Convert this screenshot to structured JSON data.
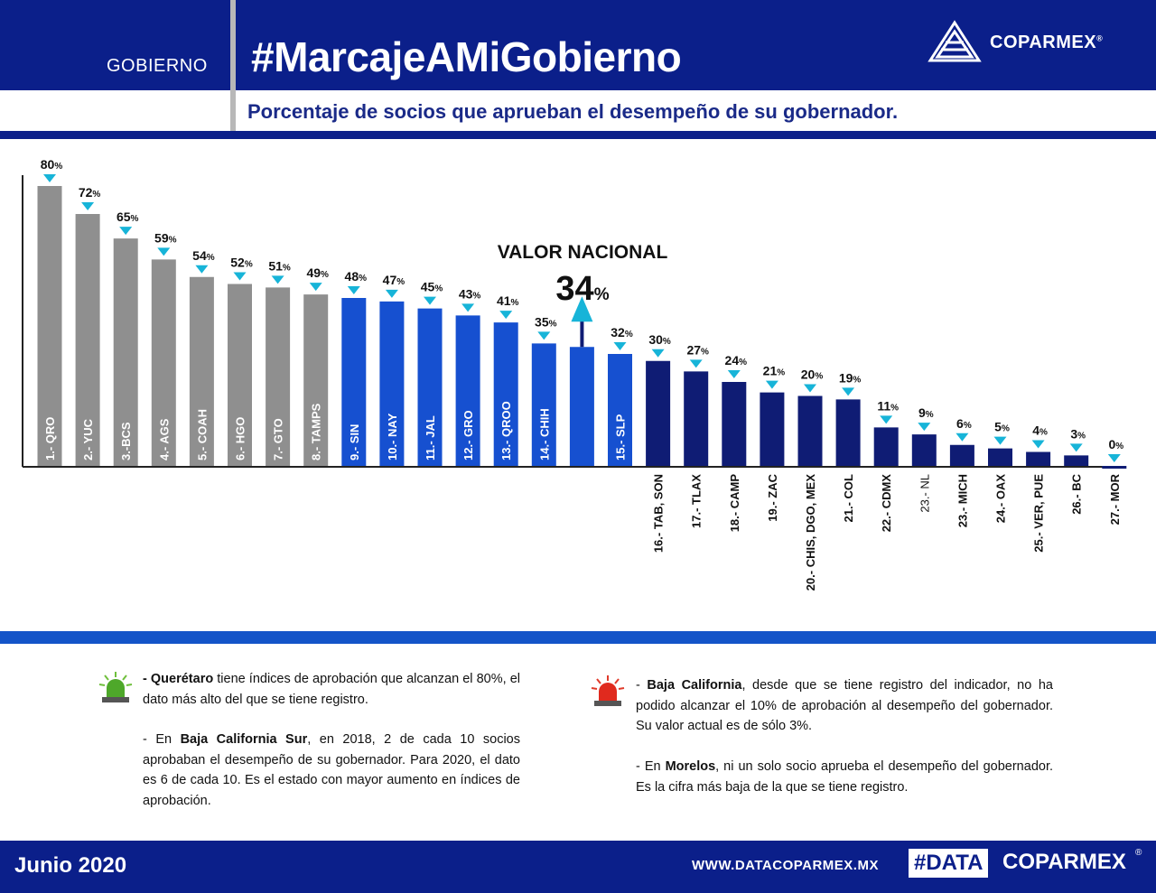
{
  "header": {
    "section": "GOBIERNO",
    "title": "#MarcajeAMiGobierno",
    "brand": "COPARMEX",
    "brand_mark": "®"
  },
  "subtitle": "Porcentaje de socios que aprueban el desempeño de su gobernador.",
  "national": {
    "label": "VALOR NACIONAL",
    "value": 34,
    "value_text": "34",
    "pct": "%"
  },
  "colors": {
    "grey": "#8f8f8f",
    "blue": "#1650d0",
    "navy": "#0f1c74",
    "arrow": "#17b4d8",
    "header": "#0b1f8a"
  },
  "chart_data": {
    "type": "bar",
    "title": "Porcentaje de socios que aprueban el desempeño de su gobernador.",
    "ylim": [
      0,
      80
    ],
    "grid": false,
    "categories": [
      "1.- QRO",
      "2.- YUC",
      "3.-BCS",
      "4.- AGS",
      "5.- COAH",
      "6.- HGO",
      "7.- GTO",
      "8.- TAMPS",
      "9.- SIN",
      "10.- NAY",
      "11.- JAL",
      "12.- GRO",
      "13.- QROO",
      "14.- CHIH",
      "",
      "15.- SLP",
      "16.- TAB, SON",
      "17.- TLAX",
      "18.- CAMP",
      "19.- ZAC",
      "20.- CHIS, DGO, MEX",
      "21.- COL",
      "22.- CDMX",
      "23.- NL",
      "23.- MICH",
      "24.- OAX",
      "25.- VER, PUE",
      "26.- BC",
      "27.- MOR"
    ],
    "values": [
      80,
      72,
      65,
      59,
      54,
      52,
      51,
      49,
      48,
      47,
      45,
      43,
      41,
      35,
      null,
      32,
      30,
      27,
      24,
      21,
      20,
      19,
      11,
      9,
      6,
      5,
      4,
      3,
      0
    ],
    "value_labels": [
      "80",
      "72",
      "65",
      "59",
      "54",
      "52",
      "51",
      "49",
      "48",
      "47",
      "45",
      "43",
      "41",
      "35",
      "",
      "32",
      "30",
      "27",
      "24",
      "21",
      "20",
      "19",
      "11",
      "9",
      "6",
      "5",
      "4",
      "3",
      "0"
    ],
    "reference_bar": {
      "index": 14,
      "value": 34,
      "label": "VALOR NACIONAL"
    },
    "groups": [
      "grey",
      "grey",
      "grey",
      "grey",
      "grey",
      "grey",
      "grey",
      "grey",
      "blue",
      "blue",
      "blue",
      "blue",
      "blue",
      "blue",
      "blue",
      "blue",
      "navy",
      "navy",
      "navy",
      "navy",
      "navy",
      "navy",
      "navy",
      "navy",
      "navy",
      "navy",
      "navy",
      "navy",
      "navy"
    ],
    "unit": "%"
  },
  "notes_left": [
    {
      "bold": "- Querétaro",
      "text": " tiene índices de aprobación que alcanzan el 80%, el dato más alto del que se tiene registro."
    },
    {
      "pre": "- En ",
      "bold": "Baja California Sur",
      "text": ", en 2018, 2 de cada 10 socios aprobaban el desempeño de su gobernador. Para 2020, el dato es 6 de cada 10. Es el estado con mayor aumento en índices de aprobación."
    }
  ],
  "notes_right": [
    {
      "pre": "- ",
      "bold": "Baja California",
      "text": ", desde que se tiene registro del indicador, no ha podido alcanzar el 10% de aprobación al desempeño del gobernador. Su valor actual es de sólo 3%."
    },
    {
      "pre": "- En ",
      "bold": "Morelos",
      "text": ", ni un solo socio aprueba el desempeño del gobernador. Es la cifra más baja de la que se tiene registro."
    }
  ],
  "icons": {
    "left_alert": "green-siren-icon",
    "right_alert": "red-siren-icon"
  },
  "footer": {
    "date": "Junio 2020",
    "url": "WWW.DATACOPARMEX.MX",
    "tag": "#DATA",
    "brand": "COPARMEX",
    "reg": "®"
  }
}
